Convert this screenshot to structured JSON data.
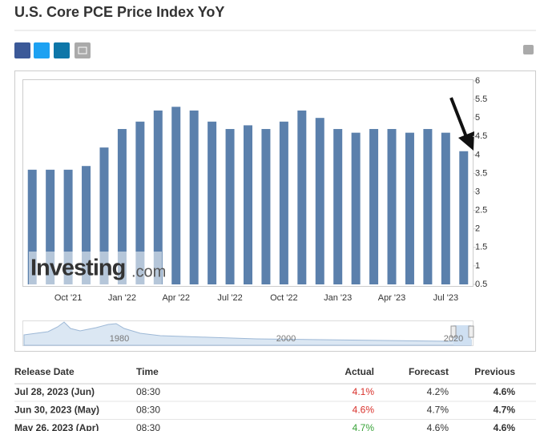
{
  "header": {
    "title": "U.S. Core PCE Price Index YoY"
  },
  "chart_data": {
    "type": "bar",
    "color": "#5b80ac",
    "categories": [
      null,
      null,
      "Oct '21",
      null,
      null,
      "Jan '22",
      null,
      null,
      "Apr '22",
      null,
      null,
      "Jul '22",
      null,
      null,
      "Oct '22",
      null,
      null,
      "Jan '23",
      null,
      null,
      "Apr '23",
      null,
      null,
      "Jul '23",
      null
    ],
    "values": [
      3.6,
      3.6,
      3.6,
      3.7,
      4.2,
      4.7,
      4.9,
      5.2,
      5.3,
      5.2,
      4.9,
      4.7,
      4.8,
      4.7,
      4.9,
      5.2,
      5.0,
      4.7,
      4.6,
      4.7,
      4.7,
      4.6,
      4.7,
      4.6,
      4.1
    ],
    "ylim": [
      0.5,
      6
    ],
    "yticks": [
      0.5,
      1,
      1.5,
      2,
      2.5,
      3,
      3.5,
      4,
      4.5,
      5,
      5.5,
      6
    ]
  },
  "watermark": {
    "brand": "Investing",
    "suffix": ".com"
  },
  "navigator": {
    "labels": [
      "1980",
      "2000",
      "2020"
    ]
  },
  "table": {
    "headers": [
      "Release Date",
      "Time",
      "Actual",
      "Forecast",
      "Previous"
    ],
    "rows": [
      {
        "cells": [
          "Jul 28, 2023 (Jun)",
          "08:30",
          "4.1%",
          "4.2%",
          "4.6%"
        ],
        "actual_color": "#d9322c"
      },
      {
        "cells": [
          "Jun 30, 2023 (May)",
          "08:30",
          "4.6%",
          "4.7%",
          "4.7%"
        ],
        "actual_color": "#d9322c"
      },
      {
        "cells": [
          "May 26, 2023 (Apr)",
          "08:30",
          "4.7%",
          "4.6%",
          "4.6%"
        ],
        "actual_color": "#3aa43a"
      }
    ]
  }
}
